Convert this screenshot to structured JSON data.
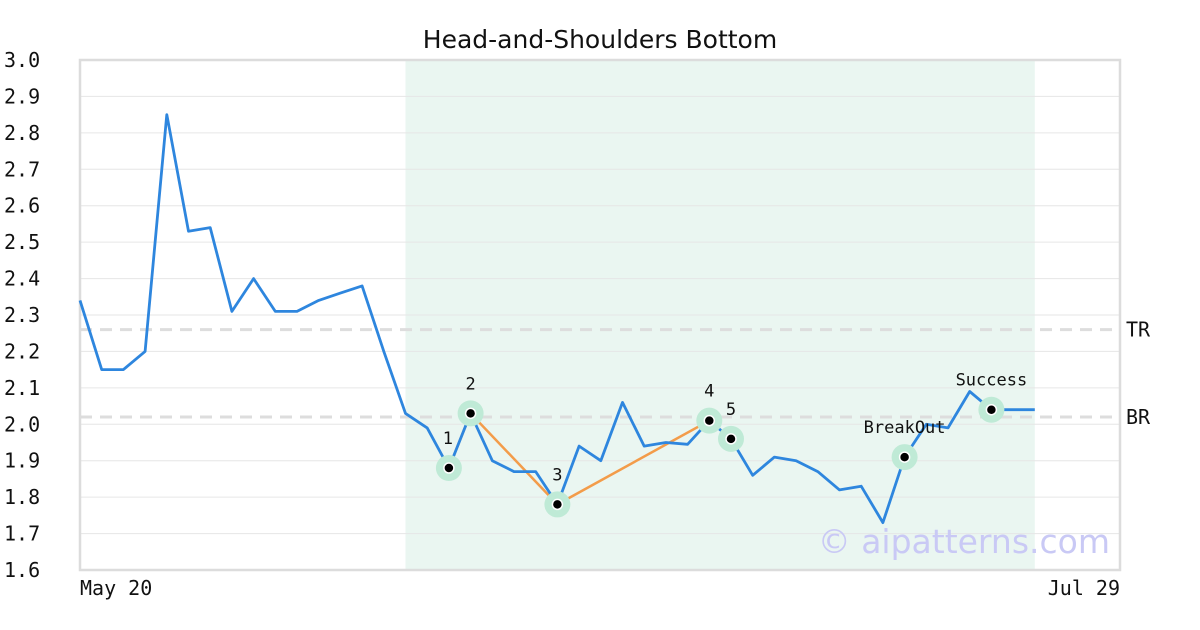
{
  "chart_data": {
    "type": "line",
    "title": "Head-and-Shoulders Bottom",
    "xlabel": "",
    "ylabel": "",
    "ylim": [
      1.6,
      3.0
    ],
    "y_ticks": [
      "3.0",
      "2.9",
      "2.8",
      "2.7",
      "2.6",
      "2.5",
      "2.4",
      "2.3",
      "2.2",
      "2.1",
      "2.0",
      "1.9",
      "1.8",
      "1.7",
      "1.6"
    ],
    "x_tick_labels": [
      "May 20",
      "Jul 29"
    ],
    "grid": true,
    "series": [
      {
        "name": "",
        "color": "#2e86de",
        "values": [
          2.34,
          2.15,
          2.15,
          2.2,
          2.85,
          2.53,
          2.54,
          2.31,
          2.4,
          2.31,
          2.31,
          2.34,
          2.36,
          2.38,
          2.2,
          2.03,
          1.99,
          1.88,
          2.03,
          1.9,
          1.87,
          1.87,
          1.78,
          1.94,
          1.9,
          2.06,
          1.94,
          1.95,
          1.945,
          2.01,
          1.96,
          1.86,
          1.91,
          1.9,
          1.87,
          1.82,
          1.83,
          1.73,
          1.91,
          2.0,
          1.99,
          2.09,
          2.04,
          2.04,
          2.04
        ]
      }
    ],
    "pattern_region": {
      "start_index": 15,
      "end_index": 44,
      "color": "#eaf6f1"
    },
    "levels": [
      {
        "label": "TR",
        "value": 2.26
      },
      {
        "label": "BR",
        "value": 2.02
      }
    ],
    "pattern_points": [
      {
        "label": "1",
        "index": 17,
        "value": 1.88
      },
      {
        "label": "2",
        "index": 18,
        "value": 2.03
      },
      {
        "label": "3",
        "index": 22,
        "value": 1.78
      },
      {
        "label": "4",
        "index": 29,
        "value": 2.01
      },
      {
        "label": "5",
        "index": 30,
        "value": 1.96
      }
    ],
    "event_points": [
      {
        "label": "BreakOut",
        "index": 38,
        "value": 1.91
      },
      {
        "label": "Success",
        "index": 42,
        "value": 2.04
      }
    ],
    "pattern_line_color": "#f39c4a",
    "marker_color": "#bfead6"
  },
  "watermark": "© aipatterns.com"
}
